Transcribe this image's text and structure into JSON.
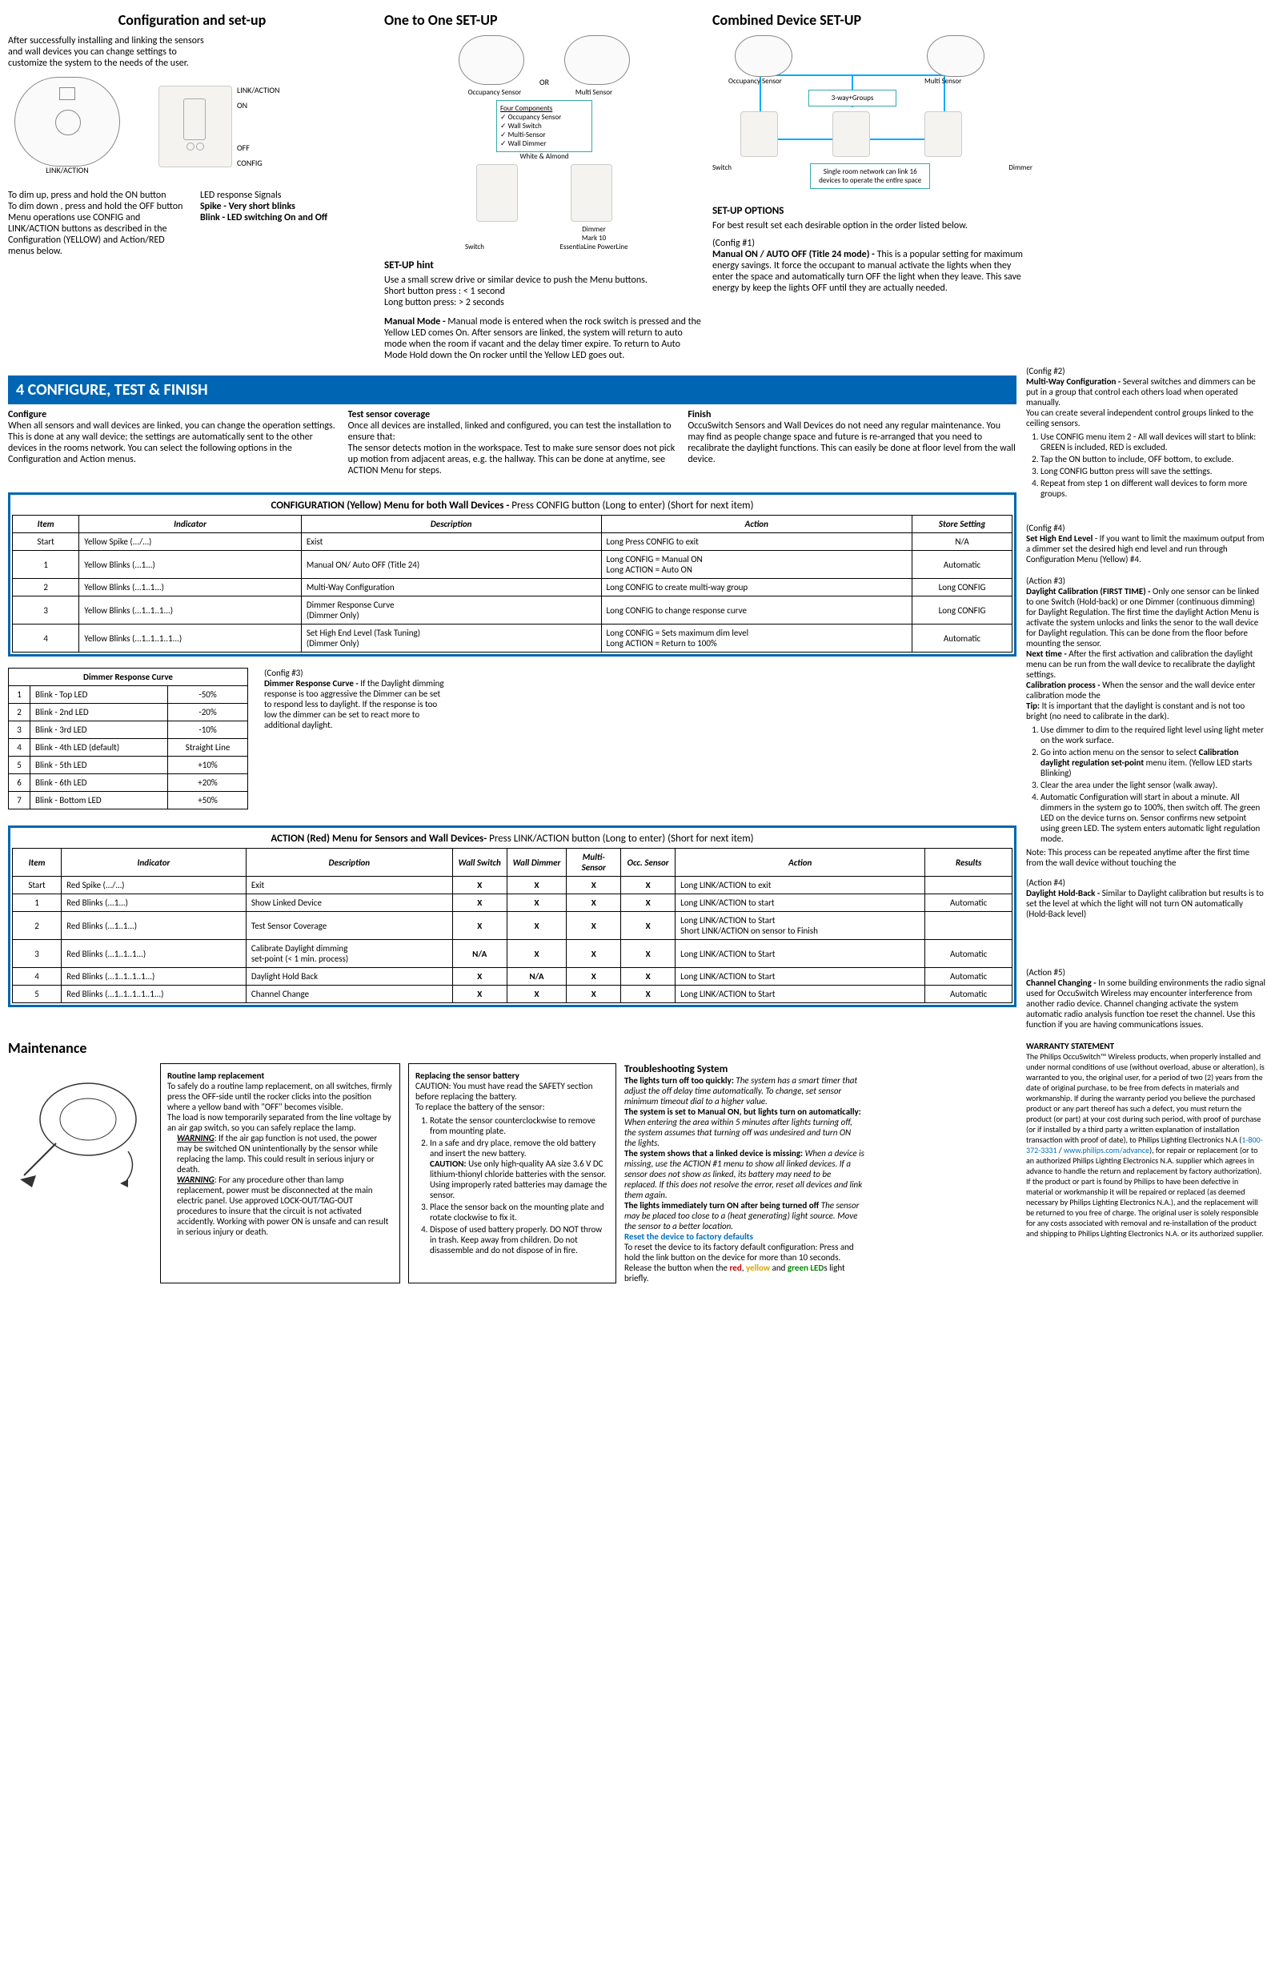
{
  "top": {
    "config_title": "Configuration and set-up",
    "config_intro": "After successfully installing and linking the sensors and wall devices you can change settings to customize the system to the needs of the user.",
    "link_action_label": "LINK/ACTION",
    "on_label": "ON",
    "off_label": "OFF",
    "config_label": "CONFIG",
    "dim_text1": "To dim up, press and hold the ON button",
    "dim_text2": "To dim down , press and hold the OFF button",
    "dim_text3": "Menu operations use CONFIG and LINK/ACTION buttons as  described in the Configuration (YELLOW) and Action/RED menus below.",
    "led_title": "LED response Signals",
    "led_spike": "Spike - Very short blinks",
    "led_blink": "Blink  - LED switching On and Off",
    "one_title": "One to One SET-UP",
    "or_label": "OR",
    "occ_sensor": "Occupancy Sensor",
    "multi_sensor": "Multi Sensor",
    "four_comp_title": "Four Components",
    "four_comp_1": "Occupancy Sensor",
    "four_comp_2": "Wall Switch",
    "four_comp_3": "Multi-Sensor",
    "four_comp_4": "Wall Dimmer",
    "white_almond": "White & Almond",
    "switch_label": "Switch",
    "dimmer_label1": "Dimmer",
    "dimmer_label2": "Mark 10",
    "dimmer_label3": "EssentiaLine  PowerLine",
    "hint_title": "SET-UP hint",
    "hint_1": "Use a small screw drive or similar device to push the Menu buttons.",
    "hint_2": "Short button press :  < 1 second",
    "hint_3": "Long button  press:  > 2 seconds",
    "manual_title": "Manual Mode -",
    "manual_body": " Manual mode is entered when the rock switch is pressed and the Yellow LED comes On. After sensors are linked, the system will return to auto mode when the room if vacant and the delay timer expire.  To return to Auto Mode Hold down the On rocker until the Yellow LED goes out.",
    "combined_title": "Combined Device SET-UP",
    "three_way": "3-way+Groups",
    "sixteen_devices": "Single room network can link 16 devices to operate the entire space",
    "dimmer_label": "Dimmer",
    "setup_options": "SET-UP OPTIONS",
    "setup_options_body": "For best result set each desirable option in the order listed below.",
    "cfg1_tag": "(Config #1)",
    "cfg1_title": "Manual ON / AUTO OFF (Title 24 mode) -",
    "cfg1_body": " This is a popular setting for maximum energy savings.  It force the occupant to manual activate the lights when they enter the space and automatically turn OFF the light when they leave.   This save energy by keep the lights OFF until they are actually needed."
  },
  "section4": {
    "banner": "4        CONFIGURE, TEST & FINISH",
    "cfg_col": {
      "title": "Configure",
      "body": "When all sensors and wall devices are linked, you can change the operation settings. This is done at any wall device; the settings are automatically sent to the other devices in the rooms network. You can select the following options in the Configuration and Action menus."
    },
    "test_col": {
      "title": "Test sensor coverage",
      "body": "Once all devices are installed, linked and configured, you can test the installation to ensure that:\nThe sensor detects motion in the workspace. Test to make sure sensor does not pick up motion from adjacent areas, e.g. the hallway.  This can be done at anytime, see ACTION Menu for steps."
    },
    "finish_col": {
      "title": "Finish",
      "body": "OccuSwitch Sensors and Wall Devices do not need any regular maintenance.  You may find as people change space and future is re-arranged that you need to recalibrate the daylight functions.  This can easily be done at floor level from the wall device."
    }
  },
  "right_col": {
    "cfg2_tag": "(Config #2)",
    "cfg2_title": "Multi-Way Configuration -",
    "cfg2_body": " Several switches and dimmers can be put in a group that control each others load when operated manually.\nYou can create several independent control groups linked to the ceiling sensors.",
    "cfg2_li1": "Use CONFIG menu item 2 - All wall devices will start to blink: GREEN is included, RED is excluded.",
    "cfg2_li2": "Tap the ON button to include, OFF bottom, to exclude.",
    "cfg2_li3": " Long  CONFIG button press will save the settings.",
    "cfg2_li4": "Repeat from step 1 on different wall devices to form more groups.",
    "cfg4_tag": "(Config #4)",
    "cfg4_title": "Set High End Level",
    "cfg4_body": " - If you want to limit the maximum output from a dimmer set the desired high end level and run through Configuration Menu (Yellow) #4.",
    "act3_tag": "(Action #3)",
    "act3_title": "Daylight Calibration  (FIRST TIME) -",
    "act3_body1": " Only one sensor can be linked to one Switch (Hold-back) or one Dimmer (continuous dimming) for Daylight Regulation.   The first time the daylight Action Menu is activate the system unlocks and links the senor to the wall device for Daylight regulation. This can be done from the floor before mounting the sensor.",
    "act3_next_title": "Next time -",
    "act3_next_body": " After the first activation and calibration the daylight menu can be run from the wall device to recalibrate the daylight settings.",
    "act3_cal_title": "Calibration process -",
    "act3_cal_body": " When the sensor and the wall device enter calibration  mode the",
    "act3_tip_title": "Tip:",
    "act3_tip_body": " It is important that the daylight is constant and is not too bright (no need to calibrate in the dark).",
    "act3_li1": "Use dimmer to dim to the required light level using light meter on the work surface.",
    "act3_li2a": "Go into action menu on the sensor to select ",
    "act3_li2b": "Calibration daylight regulation set-point",
    "act3_li2c": " menu item. (Yellow LED starts Blinking)",
    "act3_li3": "Clear the area under the light sensor (walk away).",
    "act3_li4": "Automatic Configuration will start in about a minute.  All dimmers in the system go to 100%, then switch off. The green LED on the device turns on. Sensor confirms new setpoint using green LED. The system enters automatic light regulation mode.",
    "act3_note": "Note: This process can be repeated anytime after the first time from the wall device without touching the",
    "act4_tag": "(Action #4)",
    "act4_title": "Daylight Hold-Back -",
    "act4_body": " Similar to Daylight calibration but results is to set the level at which the light will not turn ON automatically (Hold-Back level)",
    "act5_tag": "(Action #5)",
    "act5_title": "Channel Changing -",
    "act5_body": " In some building environments the radio signal used for OccuSwitch Wireless may encounter interference from another radio device. Channel changing  activate the system automatic radio analysis function toe reset the channel.  Use this function if you are having communications issues.",
    "warranty_title": "WARRANTY STATEMENT",
    "warranty_body1": "The Philips OccuSwitch™ Wireless products, when properly installed and under normal conditions of use (without overload, abuse or alteration), is warranted to you, the original user, for a period of two (2) years from the date of original purchase, to be free from defects in materials and workmanship. If during the warranty period you believe the purchased product or any part thereof has such a defect, you must return the product (or part) at your cost during such period, with proof of purchase (or if installed by a third party a written explanation of installation transaction with proof of date), to Philips Lighting Electronics N.A (",
    "warranty_phone": "1-800-372-3331",
    "warranty_slash": " / ",
    "warranty_url": "www.philips.com/advance",
    "warranty_body2": "), for repair or replacement (or to an authorized Philips Lighting Electronics N.A. supplier which agrees in advance to handle the return and replacement by factory authorization). If the product or part is found by Philips to have been defective in material or workmanship it will be repaired or replaced (as deemed necessary by Philips Lighting Electronics N.A.), and the replacement will be returned to you free of charge. The original user is solely responsible for any costs associated with removal and re-installation of the product and shipping to Philips Lighting Electronics N.A. or its authorized supplier."
  },
  "cfg_table": {
    "title_a": "CONFIGURATION (Yellow) Menu for both Wall Devices  - ",
    "title_b": "Press CONFIG button (Long to enter) (Short for next item)",
    "headers": [
      "Item",
      "Indicator",
      "Description",
      "Action",
      "Store Setting"
    ],
    "rows": [
      [
        "Start",
        "Yellow Spike (.../…)",
        "Exist",
        "Long Press CONFIG to exit",
        "N/A"
      ],
      [
        "1",
        "Yellow Blinks (...1...)",
        "Manual ON/ Auto OFF (Title 24)",
        "Long CONFIG = Manual ON\nLong ACTION = Auto ON",
        "Automatic"
      ],
      [
        "2",
        "Yellow Blinks (...1..1...)",
        "Multi-Way Configuration",
        "Long CONFIG to create multi-way group",
        "Long CONFIG"
      ],
      [
        "3",
        "Yellow Blinks (...1..1..1...)",
        "Dimmer Response Curve\n(Dimmer Only)",
        "Long CONFIG to change response curve",
        "Long CONFIG"
      ],
      [
        "4",
        "Yellow Blinks (...1..1..1..1...)",
        "Set High End Level (Task Tuning)\n(Dimmer Only)",
        "Long CONFIG = Sets maximum dim level\nLong ACTION = Return to 100%",
        "Automatic"
      ]
    ]
  },
  "dimmer_curve": {
    "title": "Dimmer Response Curve",
    "rows": [
      [
        "1",
        "Blink - Top LED",
        "-50%"
      ],
      [
        "2",
        "Blink - 2nd LED",
        "-20%"
      ],
      [
        "3",
        "Blink - 3rd LED",
        "-10%"
      ],
      [
        "4",
        "Blink - 4th LED (default)",
        "Straight Line"
      ],
      [
        "5",
        "Blink - 5th LED",
        "+10%"
      ],
      [
        "6",
        "Blink - 6th LED",
        "+20%"
      ],
      [
        "7",
        "Blink - Bottom LED",
        "+50%"
      ]
    ],
    "cfg3_tag": "(Config #3)",
    "cfg3_title": "Dimmer Response Curve -",
    "cfg3_body": " If the Daylight dimming response is too aggressive the Dimmer can be set to respond less to daylight.  If the response is too low the dimmer can be set to react more to additional daylight."
  },
  "action_table": {
    "title_a": "ACTION (Red) Menu for Sensors and Wall Devices- ",
    "title_b": "Press LINK/ACTION button (Long to enter) (Short for next item)",
    "headers": [
      "Item",
      "Indicator",
      "Description",
      "Wall Switch",
      "Wall Dimmer",
      "Multi-Sensor",
      "Occ. Sensor",
      "Action",
      "Results"
    ],
    "rows": [
      [
        "Start",
        "Red Spike (.../…)",
        "Exit",
        "X",
        "X",
        "X",
        "X",
        "Long  LINK/ACTION to exit",
        ""
      ],
      [
        "1",
        "Red Blinks (...1...)",
        "Show Linked Device",
        "X",
        "X",
        "X",
        "X",
        "Long  LINK/ACTION to start",
        "Automatic"
      ],
      [
        "2",
        "Red Blinks (...1..1...)",
        "Test Sensor Coverage",
        "X",
        "X",
        "X",
        "X",
        "Long LINK/ACTION  to Start\nShort LINK/ACTION on sensor to Finish",
        ""
      ],
      [
        "3",
        "Red Blinks (...1..1..1...)",
        "Calibrate Daylight dimming\nset-point (< 1 min. process)",
        "N/A",
        "X",
        "X",
        "X",
        "Long LINK/ACTION  to Start",
        "Automatic"
      ],
      [
        "4",
        "Red Blinks (...1..1..1..1...)",
        "Daylight Hold Back",
        "X",
        "N/A",
        "X",
        "X",
        "Long LINK/ACTION to Start",
        "Automatic"
      ],
      [
        "5",
        "Red Blinks (...1..1..1..1..1...)",
        "Channel Change",
        "X",
        "X",
        "X",
        "X",
        "Long LINK/ACTION to Start",
        "Automatic"
      ]
    ]
  },
  "maintenance": {
    "title": "Maintenance",
    "routine_title": "Routine lamp replacement",
    "routine_1": "To safely do a routine lamp replacement, on all switches, firmly press the OFF-side until the rocker clicks into the position where a yellow band with \"OFF\" becomes visible.",
    "routine_2": "The load is now temporarily separated from the line voltage by an air gap switch, so you can safely replace the lamp.",
    "warn_label": "WARNING",
    "routine_warn1": ":  If the air gap function is not used, the power may be switched ON unintentionally by the sensor while replacing the lamp. This could result in serious injury or death.",
    "routine_warn2": ":  For any procedure other than lamp replacement, power must be disconnected at the main electric panel. Use approved LOCK-OUT/TAG-OUT procedures to insure that the circuit is not activated accidently.  Working with power ON is unsafe and can result in serious injury or death.",
    "battery_title": "Replacing the sensor battery",
    "battery_caution": "CAUTION: You must have read the SAFETY section before replacing the battery.",
    "battery_intro": "To replace the battery of the sensor:",
    "battery_1": "Rotate the sensor counterclockwise to remove from mounting plate.",
    "battery_2": "In a safe and dry place, remove the old battery and insert the new battery.",
    "battery_caution2_label": "CAUTION:",
    "battery_caution2": " Use only high-quality AA size 3.6 V DC lithium-thionyl chloride batteries with the sensor. Using improperly rated batteries may damage the sensor.",
    "battery_3": "Place the sensor back on the mounting plate and rotate clockwise to fix it.",
    "battery_4": "Dispose of used battery properly. DO NOT throw in trash. Keep away from children. Do not disassemble and do not dispose of in fire.",
    "trouble_title": "Troubleshooting System",
    "t1_title": "The lights turn off too quickly:",
    "t1_body": "  The system has a smart timer that adjust the off delay time automatically.  To change, set sensor minimum timeout dial to a higher value.",
    "t2_title": "The system is set to Manual ON, but lights turn on automatically:",
    "t2_body": "  When entering the area within 5 minutes after lights turning off, the system assumes that turning off was undesired and turn ON the lights.",
    "t3_title": "The system shows that a linked device is missing:",
    "t3_body": " When a device is missing, use the ACTION  #1 menu to show all linked devices.  If a sensor does not show as linked, its battery may need to be replaced.  If this does not resolve the error, reset all devices and link them again.",
    "t4_title": "The lights immediately turn ON after being turned off",
    "t4_body": " The sensor may be placed too close to a (heat generating) light source. Move the sensor to a better location.",
    "reset_title": "Reset the device to factory defaults",
    "reset_body_a": "To reset the device to its factory default configuration: Press and hold the link button on the device for more than 10 seconds. Release the button when the ",
    "red": "red",
    "comma": ", ",
    "yellow": "yellow",
    "and": " and ",
    "green": "green LED",
    "reset_body_b": "s light briefly."
  }
}
